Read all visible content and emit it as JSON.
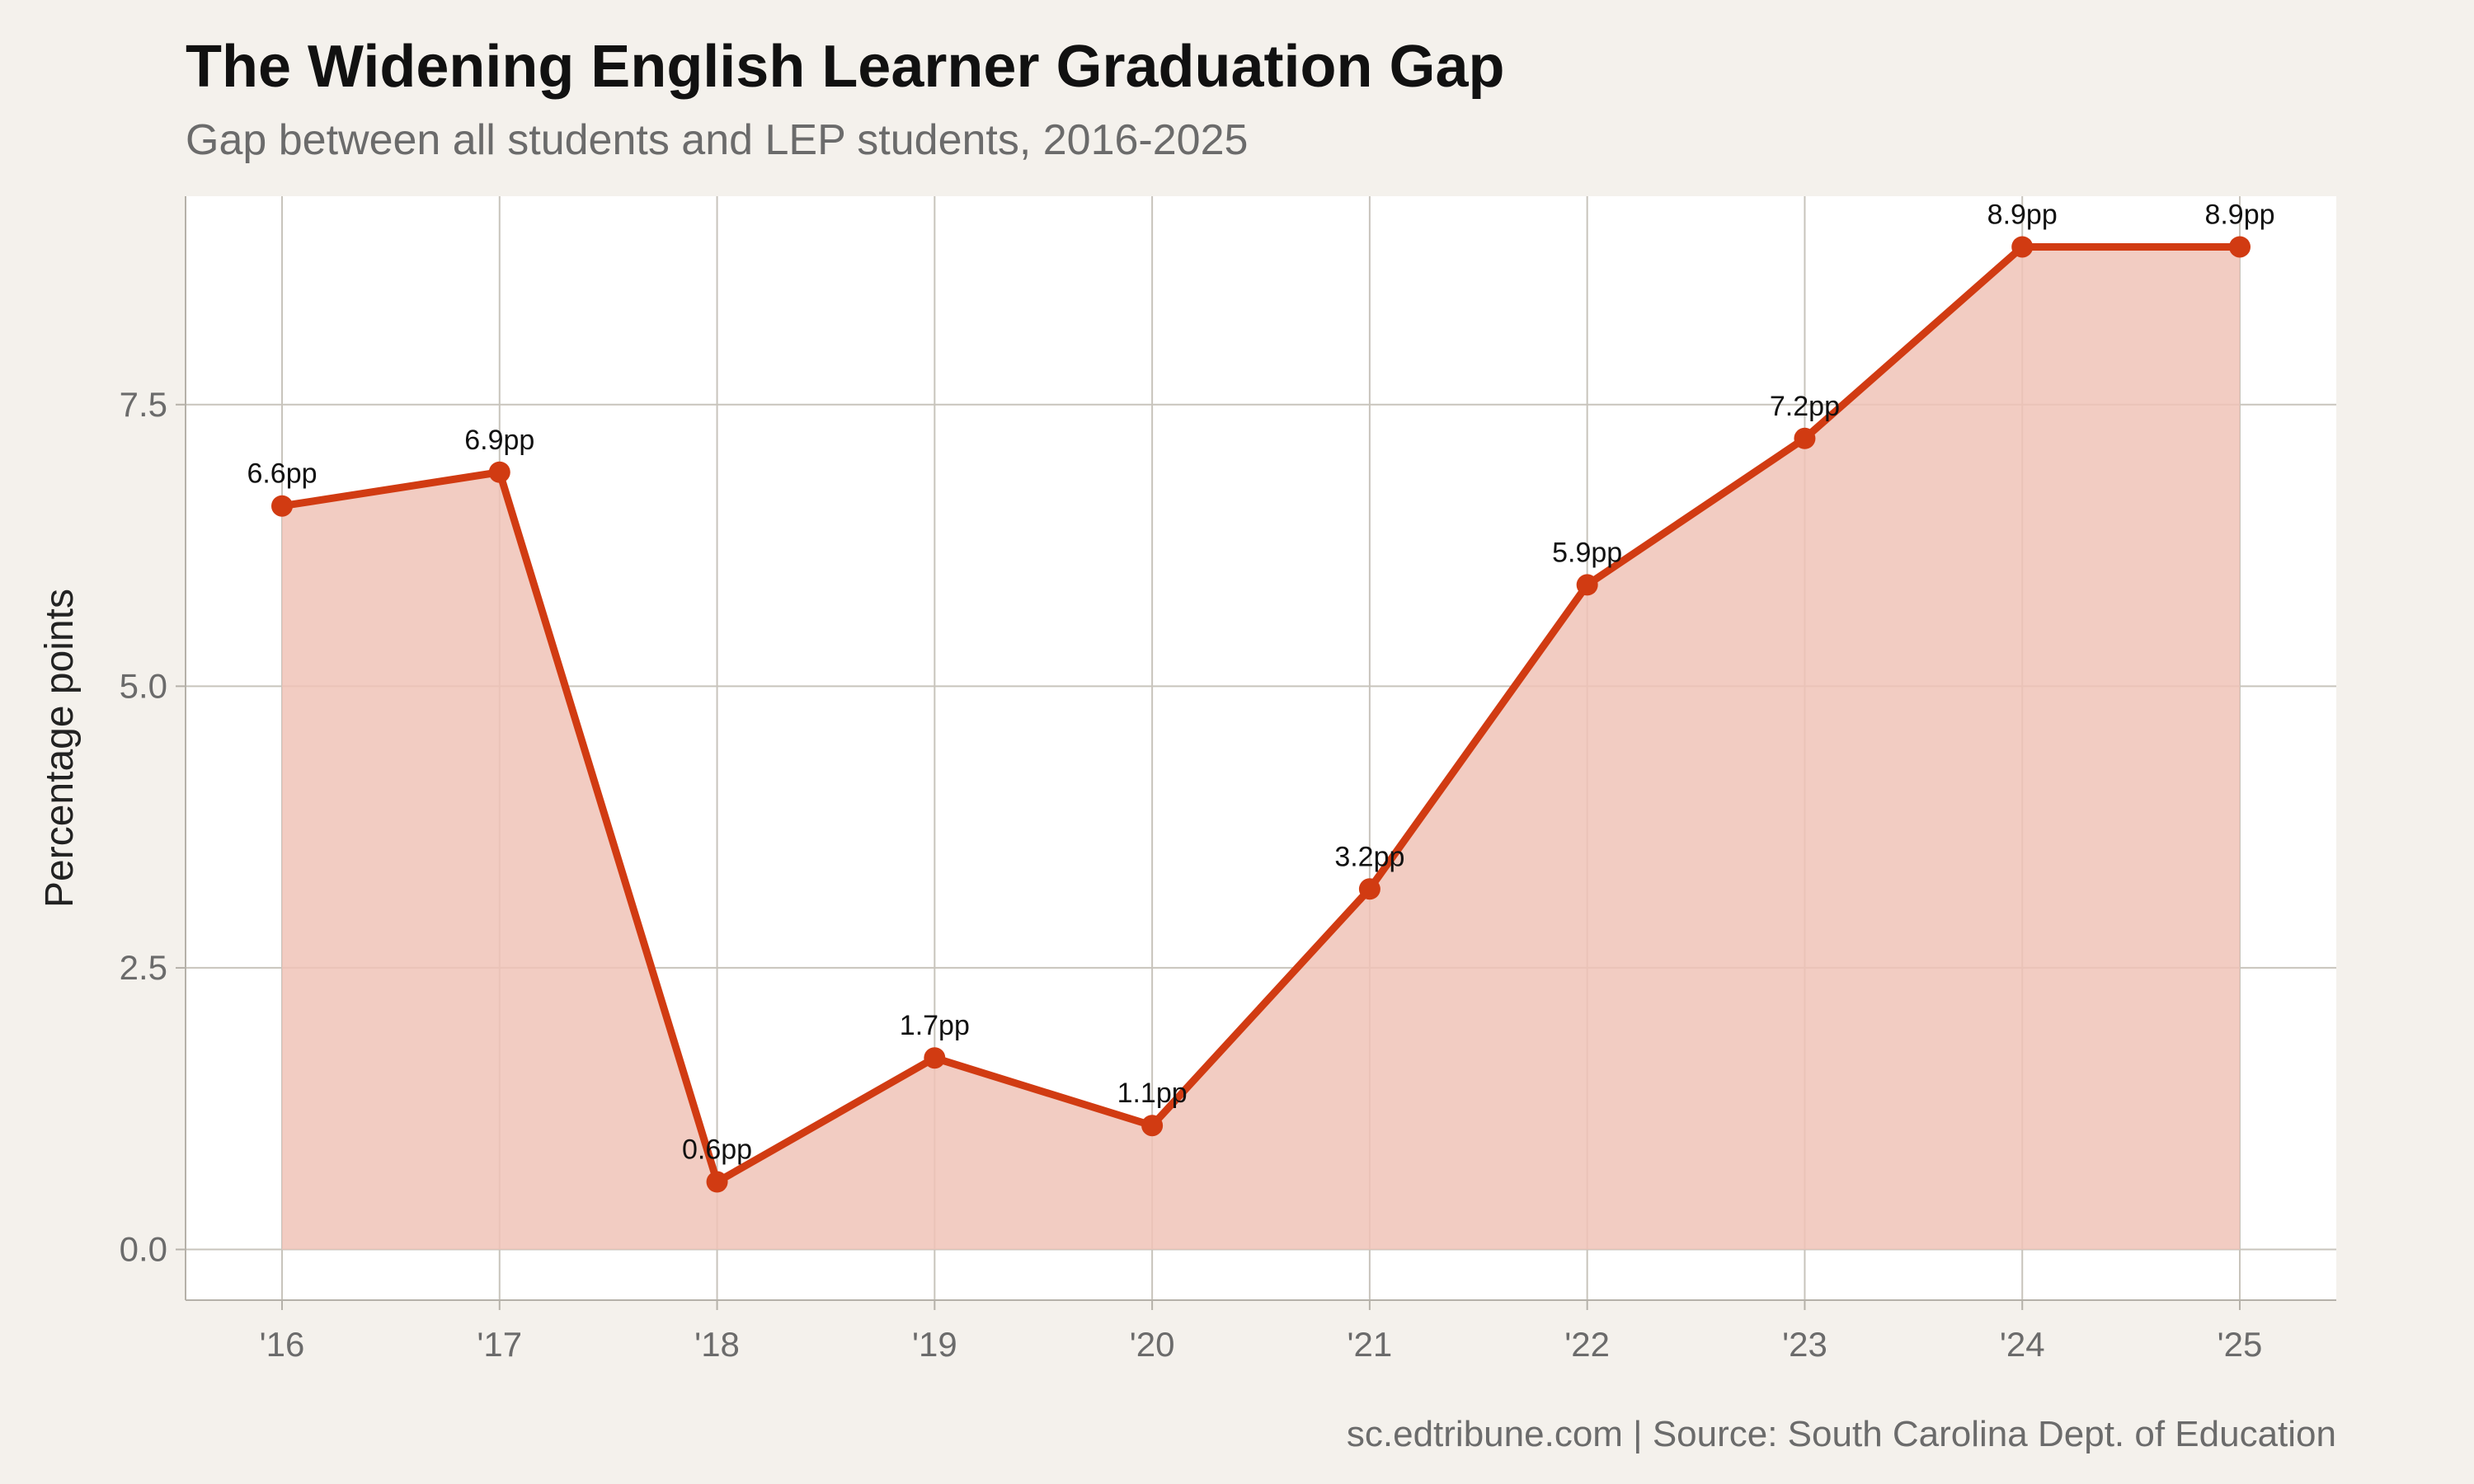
{
  "chart_data": {
    "type": "area",
    "title": "The Widening English Learner Graduation Gap",
    "subtitle": "Gap between all students and LEP students, 2016-2025",
    "caption": "sc.edtribune.com | Source: South Carolina Dept. of Education",
    "xlabel": "",
    "ylabel": "Percentage points",
    "categories": [
      "'16",
      "'17",
      "'18",
      "'19",
      "'20",
      "'21",
      "'22",
      "'23",
      "'24",
      "'25"
    ],
    "series": [
      {
        "values": [
          6.6,
          6.9,
          0.6,
          1.7,
          1.1,
          3.2,
          5.9,
          7.2,
          8.9,
          8.9
        ],
        "labels": [
          "6.6pp",
          "6.9pp",
          "0.6pp",
          "1.7pp",
          "1.1pp",
          "3.2pp",
          "5.9pp",
          "7.2pp",
          "8.9pp",
          "8.9pp"
        ]
      }
    ],
    "yticks": [
      0.0,
      2.5,
      5.0,
      7.5
    ],
    "ytick_labels": [
      "0.0",
      "2.5",
      "5.0",
      "7.5"
    ],
    "ylim": [
      -0.45,
      9.35
    ],
    "grid": true,
    "legend": "none",
    "colors": {
      "line": "#d13b12",
      "area": "#f0c3b7",
      "panel": "#ffffff",
      "background": "#f4f1ec",
      "grid": "#c8c4bc"
    }
  }
}
